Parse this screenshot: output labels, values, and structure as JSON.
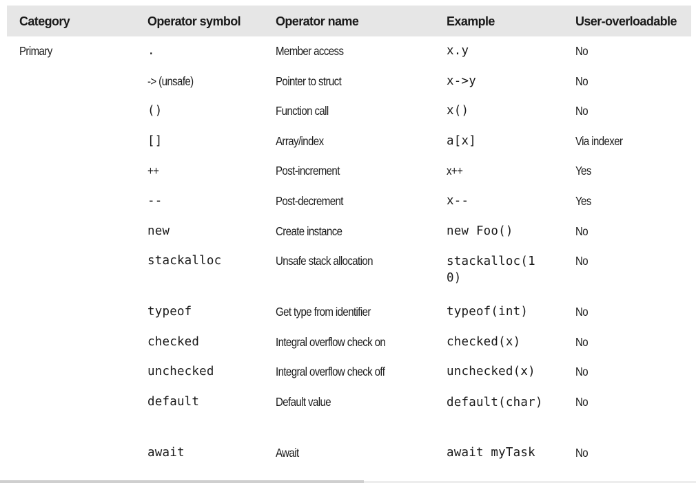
{
  "header": {
    "category": "Category",
    "symbol": "Operator symbol",
    "name": "Operator name",
    "example": "Example",
    "overloadable": "User-overloadable"
  },
  "rows": [
    {
      "category": "Primary",
      "symbol": ".",
      "name": "Member access",
      "example": "x.y",
      "overloadable": "No"
    },
    {
      "category": "",
      "symbol": "-> (unsafe)",
      "name": "Pointer to struct",
      "example": "x->y",
      "overloadable": "No"
    },
    {
      "category": "",
      "symbol": "()",
      "name": "Function call",
      "example": "x()",
      "overloadable": "No"
    },
    {
      "category": "",
      "symbol": "[]",
      "name": "Array/index",
      "example": "a[x]",
      "overloadable": "Via indexer"
    },
    {
      "category": "",
      "symbol": "++",
      "name": "Post-increment",
      "example": "x++",
      "overloadable": "Yes"
    },
    {
      "category": "",
      "symbol": "--",
      "name": "Post-decrement",
      "example": "x--",
      "overloadable": "Yes"
    },
    {
      "category": "",
      "symbol": "new",
      "name": "Create instance",
      "example": "new Foo()",
      "overloadable": "No"
    },
    {
      "category": "",
      "symbol": "stackalloc",
      "name": "Unsafe stack allocation",
      "example": "stackalloc(10)",
      "overloadable": "No"
    },
    {
      "category": "",
      "symbol": "typeof",
      "name": "Get type from identifier",
      "example": "typeof(int)",
      "overloadable": "No"
    },
    {
      "category": "",
      "symbol": "checked",
      "name": "Integral overflow check on",
      "example": "checked(x)",
      "overloadable": "No"
    },
    {
      "category": "",
      "symbol": "unchecked",
      "name": "Integral overflow check off",
      "example": "unchecked(x)",
      "overloadable": "No"
    },
    {
      "category": "",
      "symbol": "default",
      "name": "Default value",
      "example": "default(char)",
      "overloadable": "No"
    },
    {
      "category": "",
      "symbol": "await",
      "name": "Await",
      "example": "await myTask",
      "overloadable": "No"
    }
  ],
  "colors": {
    "header_bg": "#e6e6e6",
    "text": "#1a1a1a"
  }
}
